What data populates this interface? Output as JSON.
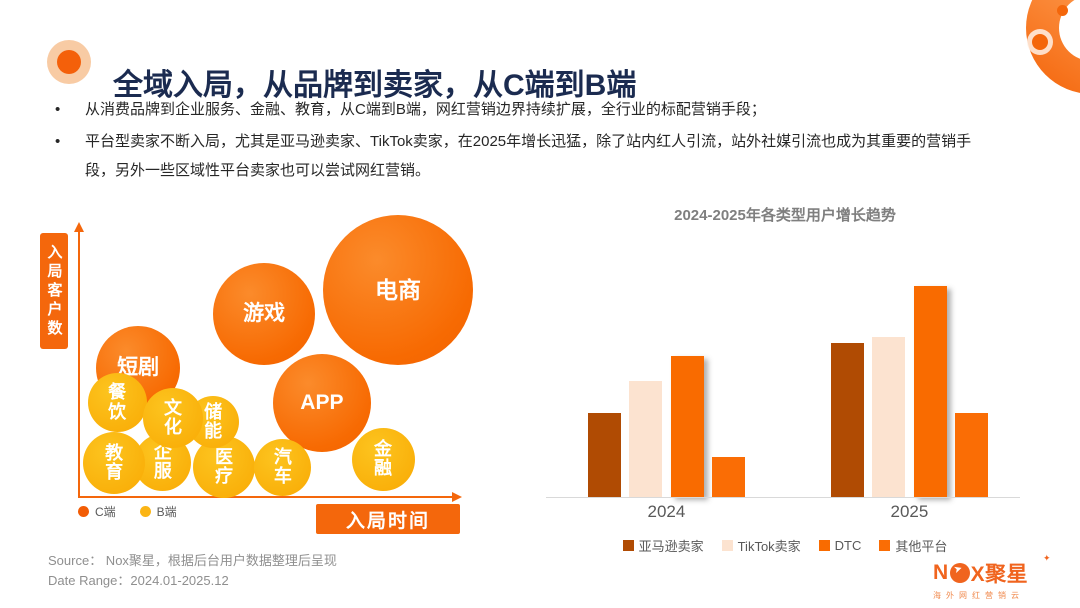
{
  "header": {
    "title": "全域入局，从品牌到卖家，从C端到B端"
  },
  "bullets": [
    "从消费品牌到企业服务、金融、教育，从C端到B端，网红营销边界持续扩展，全行业的标配营销手段；",
    "平台型卖家不断入局，尤其是亚马逊卖家、TikTok卖家，在2025年增长迅猛，除了站内红人引流，站外社媒引流也成为其重要的营销手段，另外一些区域性平台卖家也可以尝试网红营销。"
  ],
  "colors": {
    "accent_orange": "#F4670C",
    "title_navy": "#1B2B50",
    "c_segment": "#F25C05",
    "b_segment": "#FBB515"
  },
  "chart_data": [
    {
      "type": "scatter",
      "subtype": "bubble",
      "xlabel": "入局时间",
      "ylabel": "入局客户数",
      "grid": false,
      "legend_position": "bottom-left",
      "legend": [
        {
          "label": "C端",
          "color": "#F25C05"
        },
        {
          "label": "B端",
          "color": "#FBB515"
        }
      ],
      "points": [
        {
          "label": "电商",
          "segment": "C",
          "x": 84.8,
          "y": 78.1,
          "r": 75,
          "orientation": "h",
          "z": 1,
          "font": 23
        },
        {
          "label": "游戏",
          "segment": "C",
          "x": 49.1,
          "y": 69.1,
          "r": 51,
          "orientation": "h",
          "z": 1,
          "font": 21
        },
        {
          "label": "短剧",
          "segment": "C",
          "x": 15.5,
          "y": 48.7,
          "r": 42,
          "orientation": "h",
          "z": 1,
          "font": 21
        },
        {
          "label": "APP",
          "segment": "C",
          "x": 64.5,
          "y": 35.5,
          "r": 49,
          "orientation": "h",
          "z": 2,
          "font": 21
        },
        {
          "label": "餐饮",
          "segment": "B",
          "x": 9.9,
          "y": 35.5,
          "r": 29.5,
          "orientation": "v",
          "z": 3,
          "font": 18
        },
        {
          "label": "文化",
          "segment": "B",
          "x": 24.8,
          "y": 29.8,
          "r": 30,
          "orientation": "v",
          "z": 4,
          "font": 18
        },
        {
          "label": "储能",
          "segment": "B",
          "x": 35.5,
          "y": 28.3,
          "r": 26,
          "orientation": "v",
          "z": 3,
          "font": 18
        },
        {
          "label": "教育",
          "segment": "B",
          "x": 9.1,
          "y": 12.8,
          "r": 31,
          "orientation": "v",
          "z": 2,
          "font": 18
        },
        {
          "label": "企服",
          "segment": "B",
          "x": 22.1,
          "y": 13.2,
          "r": 28.5,
          "orientation": "v",
          "z": 1,
          "font": 18
        },
        {
          "label": "医疗",
          "segment": "B",
          "x": 38.4,
          "y": 11.3,
          "r": 31,
          "orientation": "v",
          "z": 2,
          "font": 18
        },
        {
          "label": "汽车",
          "segment": "B",
          "x": 54.1,
          "y": 11.3,
          "r": 28.5,
          "orientation": "v",
          "z": 2,
          "font": 18
        },
        {
          "label": "金融",
          "segment": "B",
          "x": 80.8,
          "y": 14.3,
          "r": 31.5,
          "orientation": "v",
          "z": 1,
          "font": 18
        }
      ]
    },
    {
      "type": "bar",
      "title": "2024-2025年各类型用户增长趋势",
      "categories": [
        "2024",
        "2025"
      ],
      "series": [
        {
          "name": "亚马逊卖家",
          "color": "#B04B03",
          "shadow": false,
          "values": [
            40,
            73
          ]
        },
        {
          "name": "TikTok卖家",
          "color": "#FCE3D0",
          "shadow": false,
          "values": [
            55,
            76
          ]
        },
        {
          "name": "DTC",
          "color": "#F96B00",
          "shadow": true,
          "values": [
            67,
            100
          ]
        },
        {
          "name": "其他平台",
          "color": "#FA6D05",
          "shadow": false,
          "values": [
            19,
            40
          ]
        }
      ],
      "ylim": [
        0,
        100
      ],
      "grid": false,
      "legend_position": "bottom"
    }
  ],
  "footer": {
    "source": "Source：  Nox聚星，根据后台用户数据整理后呈现",
    "date_range": "Date Range：2024.01-2025.12"
  },
  "logo": {
    "name_prefix": "N",
    "name_suffix": "X聚星",
    "star": "✦",
    "subtitle": "海外网红营销云"
  }
}
